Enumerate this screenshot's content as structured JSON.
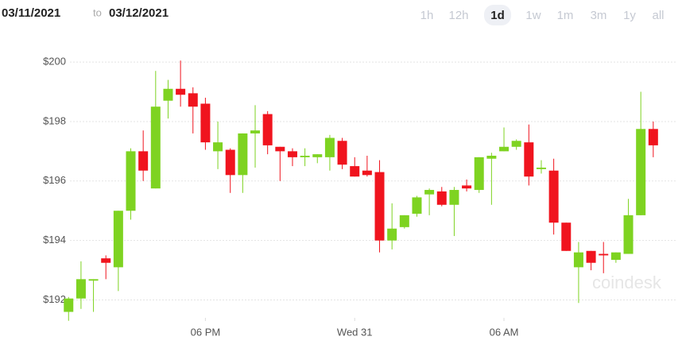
{
  "header": {
    "from": "03/11/2021",
    "to_word": "to",
    "to": "03/12/2021",
    "ranges": [
      "1h",
      "12h",
      "1d",
      "1w",
      "1m",
      "3m",
      "1y",
      "all"
    ],
    "selected_range": "1d"
  },
  "watermark": "coindesk",
  "chart_data": {
    "type": "candlestick",
    "x": [
      12.5,
      13,
      13.5,
      14,
      14.5,
      15,
      15.5,
      16,
      16.5,
      17,
      17.5,
      18,
      18.5,
      19,
      19.5,
      20,
      20.5,
      21,
      21.5,
      22,
      22.5,
      23,
      23.5,
      24,
      24.5,
      25,
      25.5,
      26,
      26.5,
      27,
      27.5,
      28,
      28.5,
      29,
      29.5,
      30,
      30.5,
      31,
      31.5,
      32,
      32.5,
      33,
      33.5,
      34,
      34.5,
      35,
      35.5,
      36
    ],
    "open": [
      191.6,
      192.05,
      192.65,
      193.4,
      193.1,
      195.0,
      197.0,
      195.75,
      198.7,
      199.1,
      198.95,
      198.6,
      197.0,
      197.05,
      196.2,
      197.6,
      198.25,
      197.15,
      197.0,
      196.8,
      196.8,
      196.8,
      197.35,
      196.5,
      196.35,
      196.3,
      194.0,
      194.45,
      194.9,
      195.55,
      195.65,
      195.2,
      195.85,
      195.7,
      196.75,
      197.0,
      197.15,
      197.3,
      196.4,
      196.35,
      194.6,
      193.1,
      193.65,
      193.55,
      193.35,
      193.55,
      194.85,
      197.75
    ],
    "high": [
      192.1,
      193.3,
      192.7,
      193.5,
      195.0,
      197.1,
      197.7,
      199.7,
      199.4,
      200.05,
      199.15,
      198.8,
      198.0,
      197.1,
      197.6,
      198.55,
      198.35,
      197.15,
      197.1,
      197.1,
      196.9,
      197.55,
      197.45,
      196.8,
      196.85,
      196.7,
      195.25,
      194.85,
      195.5,
      195.75,
      195.8,
      195.8,
      196.05,
      196.8,
      196.95,
      197.8,
      197.4,
      197.9,
      196.7,
      196.75,
      194.6,
      193.95,
      193.65,
      193.95,
      193.6,
      195.4,
      199.0,
      198.0
    ],
    "low": [
      191.3,
      191.7,
      191.6,
      192.7,
      192.3,
      194.7,
      196.0,
      195.75,
      198.1,
      198.5,
      197.6,
      197.05,
      196.4,
      195.6,
      195.6,
      196.45,
      196.9,
      196.0,
      196.5,
      196.5,
      196.6,
      196.35,
      196.4,
      196.15,
      196.15,
      193.6,
      193.7,
      194.4,
      194.8,
      194.85,
      195.15,
      194.15,
      195.65,
      195.6,
      195.2,
      197.0,
      197.05,
      195.85,
      196.25,
      194.2,
      193.65,
      191.9,
      193.0,
      192.9,
      193.25,
      193.55,
      194.85,
      196.8
    ],
    "close": [
      192.05,
      192.7,
      192.7,
      193.25,
      195.0,
      197.0,
      196.35,
      198.5,
      199.1,
      198.9,
      198.5,
      197.3,
      197.3,
      196.2,
      197.6,
      197.7,
      197.2,
      197.0,
      196.8,
      196.85,
      196.9,
      197.45,
      196.55,
      196.15,
      196.2,
      194.0,
      194.4,
      194.85,
      195.45,
      195.7,
      195.2,
      195.7,
      195.75,
      196.8,
      196.85,
      197.15,
      197.35,
      196.15,
      196.45,
      194.6,
      193.65,
      193.6,
      193.25,
      193.5,
      193.6,
      194.85,
      197.75,
      197.2
    ],
    "up_color": "#7ed321",
    "down_color": "#f0141e",
    "xlim": [
      12.3,
      36.9
    ],
    "xticks": [
      {
        "value": 18,
        "label": "06 PM"
      },
      {
        "value": 24,
        "label": "Wed 31"
      },
      {
        "value": 30,
        "label": "06 AM"
      }
    ],
    "ylim": [
      191.4,
      200.75
    ],
    "yticks": [
      {
        "value": 192,
        "label": "$192"
      },
      {
        "value": 194,
        "label": "$194"
      },
      {
        "value": 196,
        "label": "$196"
      },
      {
        "value": 198,
        "label": "$198"
      },
      {
        "value": 200,
        "label": "$200"
      }
    ],
    "grid": true
  }
}
